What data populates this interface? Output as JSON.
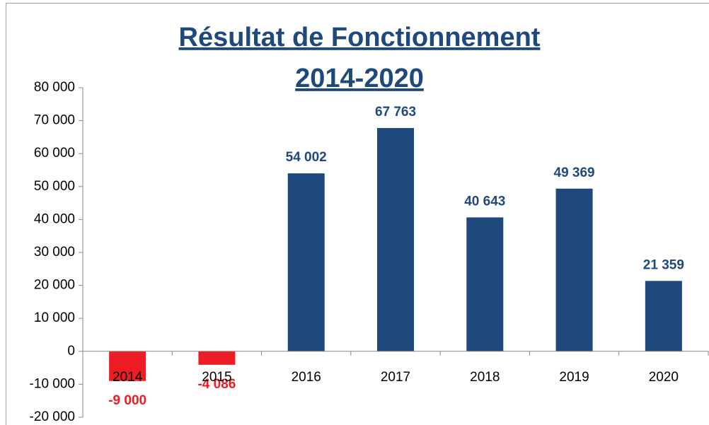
{
  "chart_data": {
    "type": "bar",
    "title": [
      "Résultat de Fonctionnement",
      "2014-2020"
    ],
    "categories": [
      "2014",
      "2015",
      "2016",
      "2017",
      "2018",
      "2019",
      "2020"
    ],
    "values": [
      -9000,
      -4086,
      54002,
      67763,
      40643,
      49369,
      21359
    ],
    "value_labels": [
      "-9 000",
      "-4 086",
      "54 002",
      "67 763",
      "40 643",
      "49 369",
      "21 359"
    ],
    "color": "#1f497d",
    "negative_color": "#ee1c25",
    "ylim": [
      -20000,
      80000
    ],
    "yticks": [
      {
        "value": -20000,
        "label": "-20 000"
      },
      {
        "value": -10000,
        "label": "-10 000"
      },
      0,
      {
        "value": 10000,
        "label": "10 000"
      },
      {
        "value": 20000,
        "label": "20 000"
      },
      {
        "value": 30000,
        "label": "30 000"
      },
      {
        "value": 40000,
        "label": "40 000"
      },
      {
        "value": 50000,
        "label": "50 000"
      },
      {
        "value": 60000,
        "label": "60 000"
      },
      {
        "value": 70000,
        "label": "70 000"
      },
      {
        "value": 80000,
        "label": "80 000"
      }
    ],
    "grid": false
  }
}
